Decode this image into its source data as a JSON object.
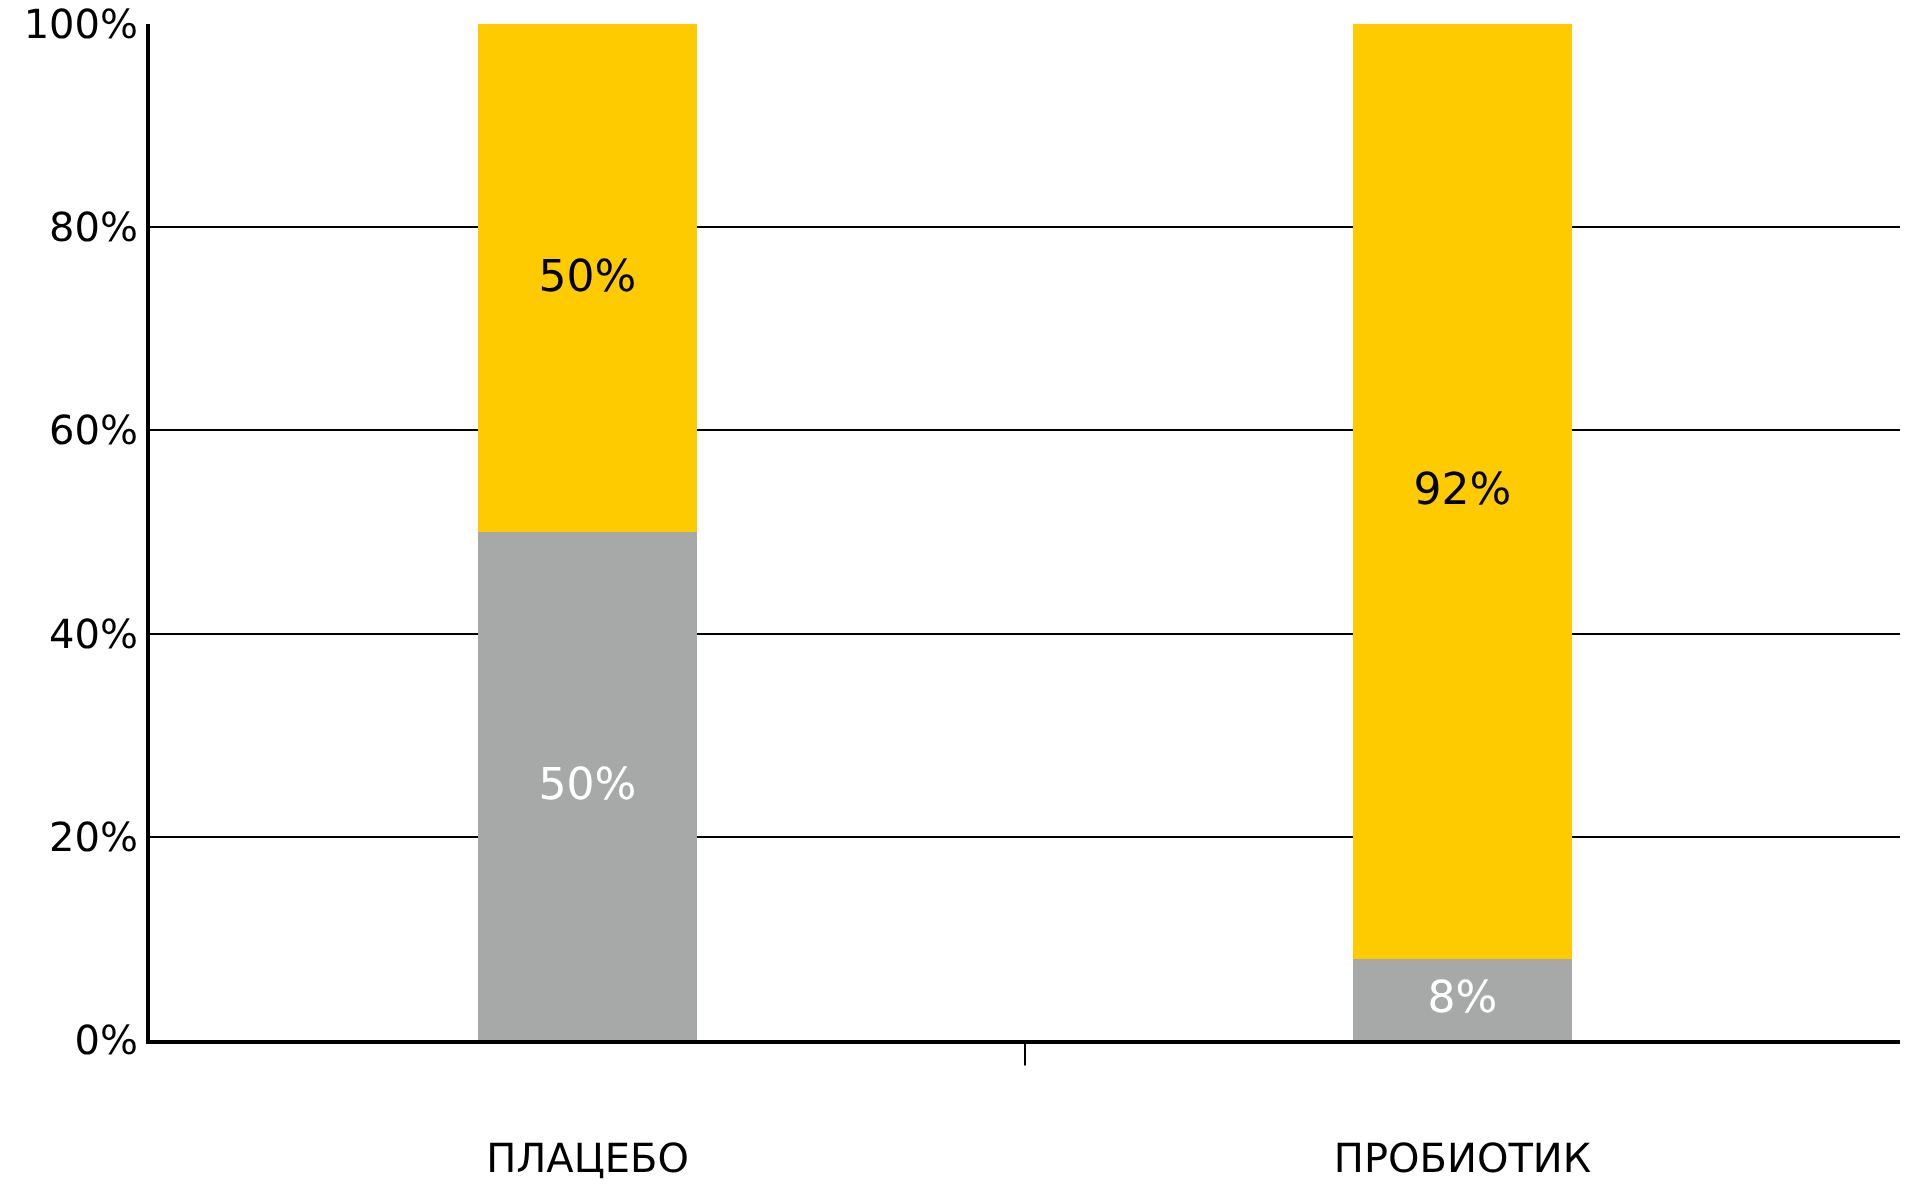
{
  "chart_data": {
    "type": "bar",
    "stacked": true,
    "categories": [
      "ПЛАЦЕБО",
      "ПРОБИОТИК"
    ],
    "series": [
      {
        "color": "#a7a9a9",
        "values": [
          50,
          8
        ],
        "value_labels": [
          "50%",
          "8%"
        ]
      },
      {
        "color": "#fecb00",
        "values": [
          50,
          92
        ],
        "value_labels": [
          "50%",
          "92%"
        ]
      }
    ],
    "ylim": [
      0,
      100
    ],
    "yticks": [
      {
        "value": 0,
        "label": "0%"
      },
      {
        "value": 20,
        "label": "20%"
      },
      {
        "value": 40,
        "label": "40%"
      },
      {
        "value": 60,
        "label": "60%"
      },
      {
        "value": 80,
        "label": "80%"
      },
      {
        "value": 100,
        "label": "100%"
      }
    ],
    "grid": "y"
  }
}
